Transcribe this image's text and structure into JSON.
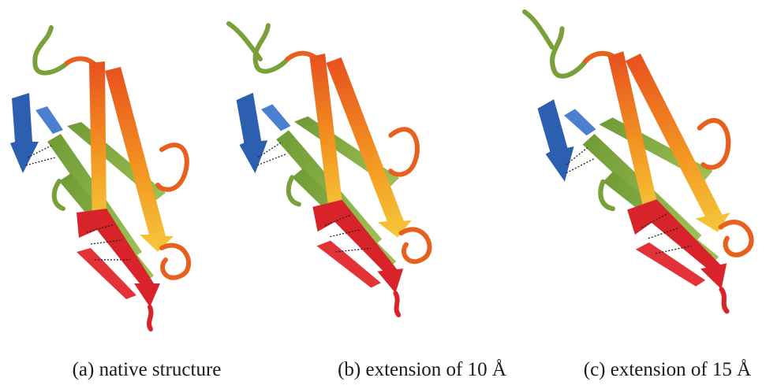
{
  "panels": [
    {
      "caption": "(a) native structure"
    },
    {
      "caption": "(b) extension of 10 Å"
    },
    {
      "caption": "(c) extension of 15 Å"
    }
  ]
}
